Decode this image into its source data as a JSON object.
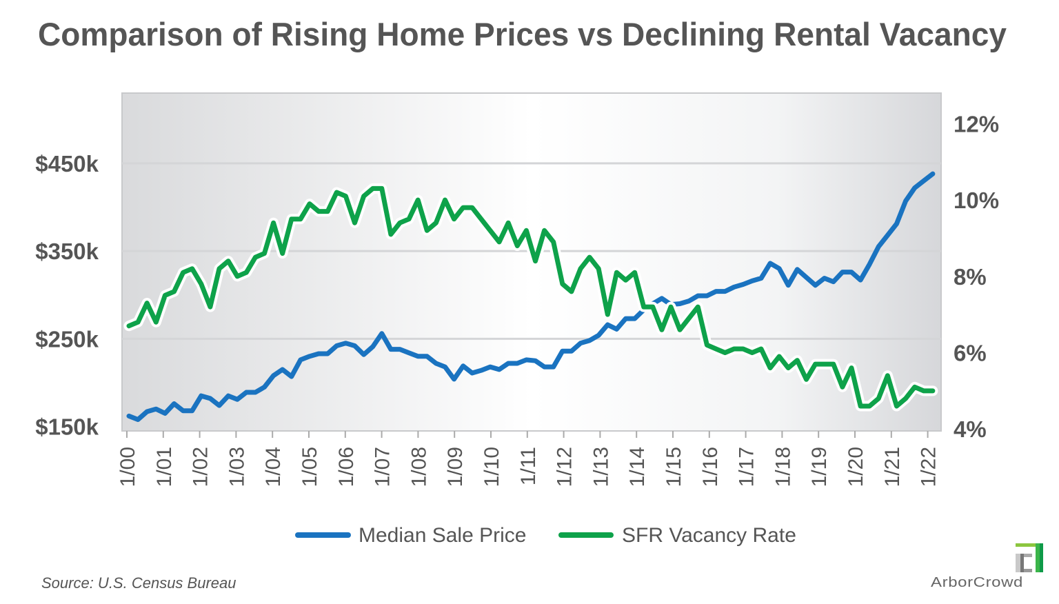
{
  "chart_data": {
    "type": "line",
    "title": "Comparison of Rising Home Prices vs Declining Rental Vacancy",
    "source": "Source: U.S. Census Bureau",
    "brand": "ArborCrowd",
    "grid": "horizontal at left-axis ticks",
    "legend_placement": "bottom",
    "x_tick_labels": [
      "1/00",
      "1/01",
      "1/02",
      "1/03",
      "1/04",
      "1/05",
      "1/06",
      "1/07",
      "1/08",
      "1/09",
      "1/10",
      "1/11",
      "1/12",
      "1/13",
      "1/14",
      "1/15",
      "1/16",
      "1/17",
      "1/18",
      "1/19",
      "1/20",
      "1/21",
      "1/22"
    ],
    "x_tick_years": [
      2000,
      2001,
      2002,
      2003,
      2004,
      2005,
      2006,
      2007,
      2008,
      2009,
      2010,
      2011,
      2012,
      2013,
      2014,
      2015,
      2016,
      2017,
      2018,
      2019,
      2020,
      2021,
      2022
    ],
    "left_axis": {
      "unit": "$k",
      "ylim": [
        145,
        530
      ],
      "ticks": [
        150,
        250,
        350,
        450
      ],
      "tick_labels": [
        "$150k",
        "$250k",
        "$350k",
        "$450k"
      ]
    },
    "right_axis": {
      "unit": "%",
      "ylim": [
        3.95,
        12.8
      ],
      "ticks": [
        4,
        6,
        8,
        10,
        12
      ],
      "tick_labels": [
        "4%",
        "6%",
        "8%",
        "10%",
        "12%"
      ]
    },
    "x_start": "2000-Q1",
    "x_frequency": "quarterly",
    "series": [
      {
        "name": "Median Sale Price",
        "axis": "left",
        "color": "#1a73c0",
        "values": [
          162,
          158,
          167,
          170,
          165,
          176,
          168,
          168,
          185,
          182,
          174,
          185,
          181,
          189,
          189,
          195,
          208,
          215,
          207,
          226,
          230,
          233,
          233,
          242,
          245,
          242,
          232,
          241,
          256,
          238,
          238,
          234,
          230,
          230,
          222,
          218,
          204,
          219,
          211,
          214,
          218,
          215,
          222,
          222,
          226,
          225,
          218,
          218,
          236,
          236,
          245,
          248,
          254,
          266,
          261,
          273,
          273,
          283,
          290,
          296,
          289,
          290,
          293,
          299,
          299,
          304,
          304,
          309,
          312,
          316,
          319,
          336,
          330,
          311,
          329,
          320,
          311,
          319,
          315,
          326,
          326,
          317,
          335,
          355,
          368,
          381,
          407,
          422,
          430,
          438
        ]
      },
      {
        "name": "SFR Vacancy Rate",
        "axis": "right",
        "color": "#0ea24a",
        "values": [
          6.7,
          6.8,
          7.3,
          6.8,
          7.5,
          7.6,
          8.1,
          8.2,
          7.8,
          7.2,
          8.2,
          8.4,
          8.0,
          8.1,
          8.5,
          8.6,
          9.4,
          8.6,
          9.5,
          9.5,
          9.9,
          9.7,
          9.7,
          10.2,
          10.1,
          9.4,
          10.1,
          10.3,
          10.3,
          9.1,
          9.4,
          9.5,
          10.0,
          9.2,
          9.4,
          10.0,
          9.5,
          9.8,
          9.8,
          9.5,
          9.2,
          8.9,
          9.4,
          8.8,
          9.2,
          8.4,
          9.2,
          8.9,
          7.8,
          7.6,
          8.2,
          8.5,
          8.2,
          7.0,
          8.1,
          7.9,
          8.1,
          7.2,
          7.2,
          6.6,
          7.2,
          6.6,
          6.9,
          7.2,
          6.2,
          6.1,
          6.0,
          6.1,
          6.1,
          6.0,
          6.1,
          5.6,
          5.9,
          5.6,
          5.8,
          5.3,
          5.7,
          5.7,
          5.7,
          5.1,
          5.6,
          4.6,
          4.6,
          4.8,
          5.4,
          4.6,
          4.8,
          5.1,
          5.0,
          5.0
        ]
      }
    ]
  }
}
